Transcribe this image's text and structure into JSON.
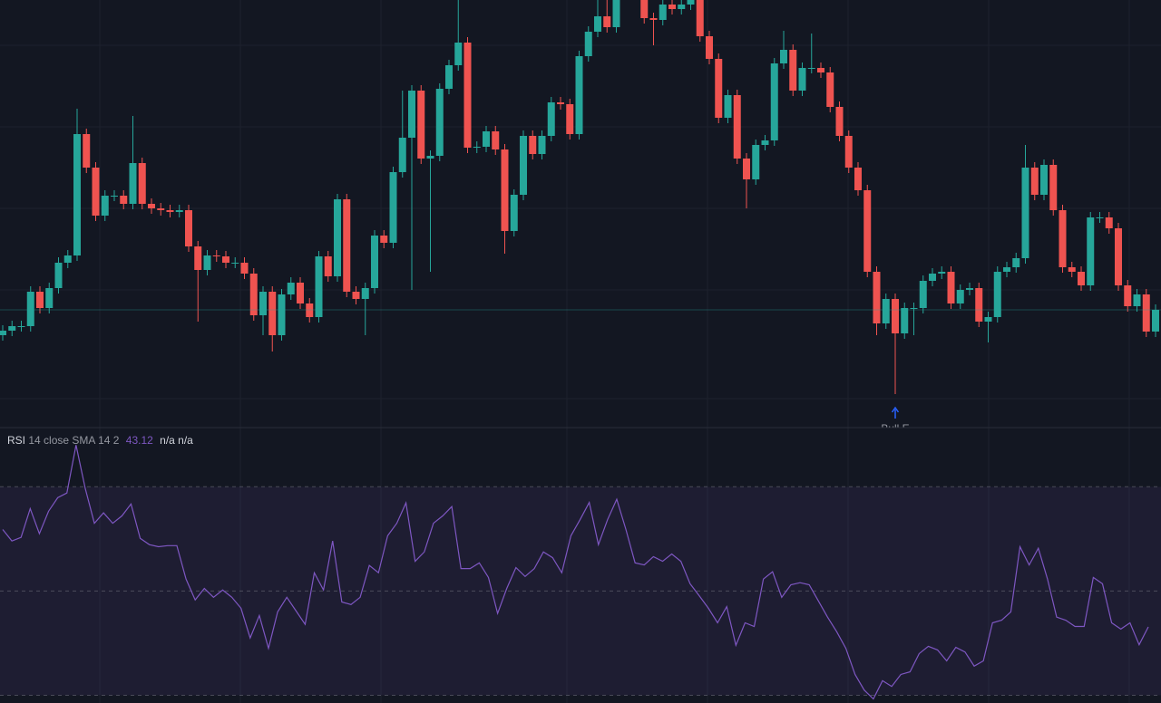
{
  "chart_data": [
    {
      "type": "candlestick",
      "up_color": "#26a69a",
      "down_color": "#ef5350",
      "ylim": [
        0,
        470
      ],
      "open": [
        100,
        105,
        110,
        110,
        148,
        130,
        152,
        180,
        188,
        322,
        285,
        232,
        254,
        254,
        245,
        290,
        245,
        240,
        238,
        236,
        238,
        198,
        172,
        188,
        187,
        180,
        180,
        168,
        122,
        148,
        100,
        145,
        158,
        135,
        120,
        187,
        165,
        250,
        148,
        140,
        152,
        210,
        202,
        280,
        318,
        370,
        295,
        298,
        372,
        398,
        423,
        307,
        308,
        325,
        305,
        215,
        255,
        320,
        300,
        320,
        357,
        355,
        322,
        408,
        435,
        452,
        440,
        480,
        490,
        480,
        450,
        448,
        465,
        460,
        465,
        470,
        430,
        405,
        340,
        365,
        295,
        272,
        310,
        315,
        400,
        415,
        370,
        395,
        395,
        390,
        352,
        320,
        285,
        260,
        170,
        113,
        140,
        102,
        130,
        130,
        160,
        168,
        170,
        135,
        150,
        152,
        115,
        120,
        170,
        175,
        185,
        285,
        255,
        288,
        238,
        175,
        170,
        155,
        230,
        230,
        218,
        155,
        132,
        145,
        104
      ],
      "high": [
        111,
        116,
        116,
        154,
        154,
        158,
        186,
        194,
        350,
        328,
        291,
        260,
        260,
        260,
        342,
        296,
        251,
        246,
        244,
        244,
        244,
        204,
        194,
        194,
        193,
        186,
        186,
        174,
        154,
        154,
        151,
        164,
        164,
        141,
        193,
        193,
        256,
        256,
        154,
        158,
        216,
        216,
        286,
        370,
        376,
        376,
        304,
        378,
        404,
        470,
        429,
        314,
        331,
        331,
        311,
        261,
        326,
        326,
        326,
        363,
        363,
        361,
        414,
        441,
        470,
        470,
        486,
        496,
        496,
        486,
        456,
        471,
        471,
        471,
        476,
        476,
        436,
        411,
        371,
        371,
        301,
        316,
        321,
        406,
        436,
        421,
        401,
        433,
        401,
        396,
        358,
        326,
        291,
        266,
        176,
        146,
        146,
        136,
        136,
        166,
        174,
        176,
        176,
        156,
        158,
        158,
        126,
        176,
        181,
        191,
        310,
        291,
        294,
        294,
        244,
        181,
        176,
        236,
        236,
        236,
        224,
        161,
        151,
        151,
        134
      ],
      "low": [
        94,
        99,
        104,
        104,
        124,
        124,
        146,
        174,
        182,
        279,
        226,
        226,
        248,
        239,
        239,
        239,
        234,
        232,
        230,
        230,
        192,
        115,
        166,
        181,
        174,
        174,
        162,
        116,
        100,
        82,
        94,
        139,
        129,
        114,
        114,
        159,
        159,
        142,
        134,
        100,
        146,
        196,
        196,
        274,
        150,
        289,
        170,
        292,
        366,
        392,
        301,
        301,
        302,
        299,
        190,
        209,
        249,
        294,
        294,
        314,
        349,
        316,
        316,
        402,
        429,
        434,
        434,
        474,
        474,
        444,
        420,
        442,
        454,
        454,
        459,
        424,
        399,
        334,
        334,
        289,
        240,
        266,
        304,
        309,
        394,
        364,
        364,
        389,
        384,
        346,
        314,
        279,
        254,
        164,
        100,
        107,
        35,
        96,
        100,
        124,
        154,
        162,
        129,
        129,
        144,
        109,
        92,
        114,
        164,
        169,
        179,
        249,
        249,
        232,
        169,
        164,
        149,
        149,
        224,
        212,
        149,
        126,
        126,
        98,
        98
      ],
      "close": [
        105,
        110,
        110,
        148,
        130,
        152,
        180,
        188,
        322,
        285,
        232,
        254,
        254,
        245,
        290,
        245,
        240,
        238,
        236,
        238,
        198,
        172,
        188,
        187,
        180,
        180,
        168,
        122,
        148,
        100,
        145,
        158,
        135,
        120,
        187,
        165,
        250,
        148,
        140,
        152,
        210,
        202,
        280,
        318,
        370,
        295,
        298,
        372,
        398,
        423,
        307,
        308,
        325,
        305,
        215,
        255,
        320,
        300,
        320,
        357,
        355,
        322,
        408,
        435,
        452,
        440,
        480,
        490,
        480,
        450,
        448,
        465,
        460,
        465,
        470,
        430,
        405,
        340,
        365,
        295,
        272,
        310,
        315,
        400,
        415,
        370,
        395,
        395,
        390,
        352,
        320,
        285,
        260,
        170,
        113,
        140,
        102,
        130,
        130,
        160,
        168,
        170,
        135,
        150,
        152,
        115,
        120,
        170,
        175,
        185,
        285,
        255,
        288,
        238,
        175,
        170,
        155,
        230,
        230,
        218,
        155,
        132,
        145,
        104,
        128
      ],
      "annotations": [
        {
          "label": "Bull E",
          "x": 96
        }
      ]
    },
    {
      "type": "line",
      "title": "RSI",
      "subtitle": "14 close SMA 14 2",
      "value_label": "43.12",
      "extra_labels": [
        "n/a",
        "n/a"
      ],
      "color": "#7e57c2",
      "ylim": [
        28,
        81
      ],
      "levels": [
        70,
        50,
        30
      ],
      "values": [
        61.8,
        59.6,
        60.3,
        65.8,
        61.0,
        65.3,
        67.9,
        68.8,
        78.0,
        69.7,
        63.0,
        65.0,
        63.0,
        64.4,
        66.7,
        60.1,
        58.9,
        58.5,
        58.7,
        58.7,
        52.3,
        48.3,
        50.5,
        48.8,
        50.2,
        48.8,
        46.7,
        41.0,
        45.3,
        39.0,
        46.0,
        48.8,
        46.2,
        43.6,
        53.5,
        50.2,
        59.6,
        47.9,
        47.4,
        48.8,
        54.9,
        53.5,
        60.6,
        63.0,
        66.9,
        55.7,
        57.5,
        63.0,
        64.4,
        66.2,
        54.3,
        54.3,
        55.4,
        52.6,
        45.7,
        50.5,
        54.5,
        52.8,
        54.3,
        57.5,
        56.4,
        53.5,
        60.6,
        63.7,
        67.0,
        58.9,
        63.7,
        67.6,
        61.8,
        55.4,
        55.0,
        56.6,
        55.7,
        57.1,
        55.7,
        51.4,
        49.1,
        46.7,
        43.9,
        47.0,
        39.6,
        43.9,
        43.2,
        52.3,
        53.7,
        48.8,
        51.2,
        51.6,
        51.2,
        48.1,
        45.0,
        42.2,
        39.0,
        34.0,
        31.0,
        29.3,
        32.8,
        31.7,
        34.0,
        34.5,
        38.0,
        39.4,
        38.7,
        36.6,
        39.2,
        38.3,
        35.6,
        36.6,
        43.9,
        44.4,
        46.0,
        58.5,
        55.0,
        58.2,
        52.3,
        45.0,
        44.4,
        43.2,
        43.2,
        52.6,
        51.4,
        43.9,
        42.7,
        43.9,
        39.7,
        43.12
      ]
    }
  ]
}
